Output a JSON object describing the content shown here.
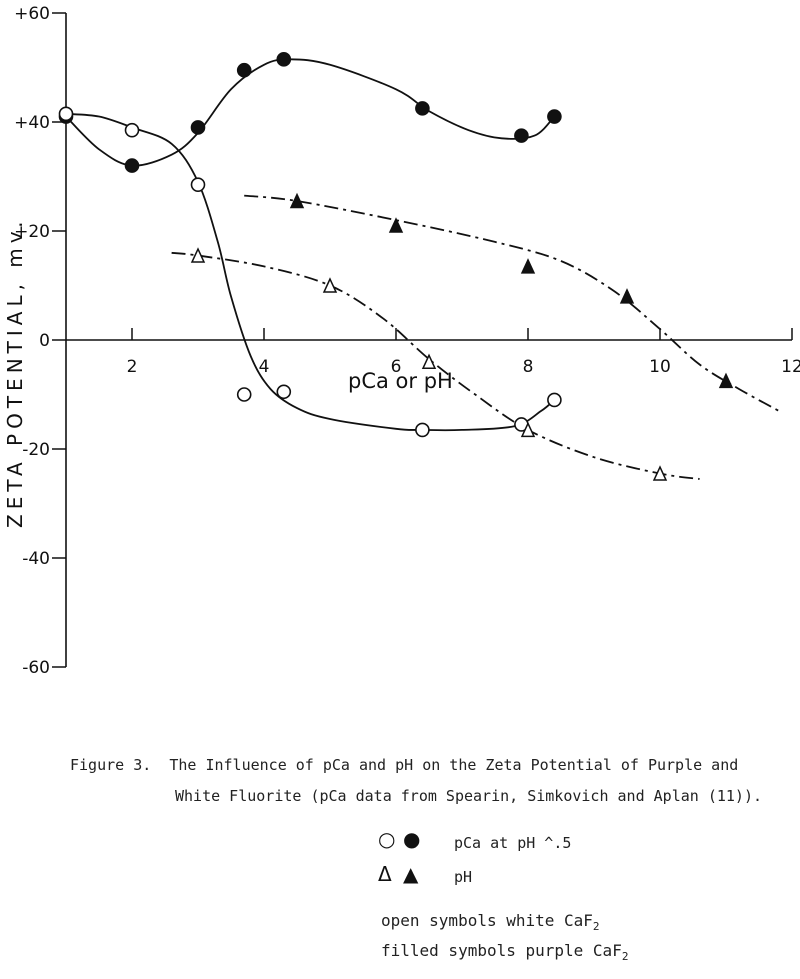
{
  "chart_data": {
    "type": "line",
    "xlabel": "pCa or pH",
    "ylabel": "ZETA POTENTIAL, mv.",
    "xlim": [
      1,
      12
    ],
    "ylim": [
      -60,
      60
    ],
    "x_ticks": [
      2,
      4,
      6,
      8,
      10,
      12
    ],
    "y_ticks": [
      {
        "value": 60,
        "label": "+60"
      },
      {
        "value": 40,
        "label": "+40"
      },
      {
        "value": 20,
        "label": "+20"
      },
      {
        "value": 0,
        "label": "0"
      },
      {
        "value": -20,
        "label": "-20"
      },
      {
        "value": -40,
        "label": "-40"
      },
      {
        "value": -60,
        "label": "-60"
      }
    ],
    "series": [
      {
        "marker": "filled-circle",
        "style": "solid",
        "points": [
          [
            1,
            41
          ],
          [
            2,
            32
          ],
          [
            3,
            39
          ],
          [
            3.7,
            49.5
          ],
          [
            4.3,
            51.5
          ],
          [
            6.4,
            42.5
          ],
          [
            7.9,
            37.5
          ],
          [
            8.4,
            41
          ]
        ],
        "curve": [
          [
            1,
            41
          ],
          [
            1.5,
            35
          ],
          [
            2,
            32
          ],
          [
            2.6,
            34
          ],
          [
            3,
            38
          ],
          [
            3.5,
            46
          ],
          [
            4,
            50.5
          ],
          [
            4.4,
            51.5
          ],
          [
            5,
            50.5
          ],
          [
            6,
            46
          ],
          [
            6.5,
            42
          ],
          [
            7.1,
            38.5
          ],
          [
            7.6,
            37
          ],
          [
            8.1,
            37.5
          ],
          [
            8.4,
            41
          ]
        ]
      },
      {
        "marker": "open-circle",
        "style": "solid",
        "points": [
          [
            1,
            41.5
          ],
          [
            2,
            38.5
          ],
          [
            3,
            28.5
          ],
          [
            3.7,
            -10
          ],
          [
            4.3,
            -9.5
          ],
          [
            6.4,
            -16.5
          ],
          [
            7.9,
            -15.5
          ],
          [
            8.4,
            -11
          ]
        ],
        "curve": [
          [
            1,
            41.5
          ],
          [
            1.5,
            41
          ],
          [
            2,
            39
          ],
          [
            2.6,
            36
          ],
          [
            3,
            29
          ],
          [
            3.3,
            18
          ],
          [
            3.5,
            8
          ],
          [
            3.8,
            -3
          ],
          [
            4.1,
            -9
          ],
          [
            4.5,
            -12.5
          ],
          [
            5,
            -14.5
          ],
          [
            6,
            -16.3
          ],
          [
            6.4,
            -16.5
          ],
          [
            7,
            -16.5
          ],
          [
            7.8,
            -15.8
          ],
          [
            8.2,
            -13
          ],
          [
            8.4,
            -11
          ]
        ]
      },
      {
        "marker": "filled-triangle",
        "style": "dash-dot",
        "points": [
          [
            4.5,
            25.5
          ],
          [
            6,
            21
          ],
          [
            8,
            13.5
          ],
          [
            9.5,
            8
          ],
          [
            11,
            -7.5
          ]
        ],
        "curve": [
          [
            3.7,
            26.5
          ],
          [
            4.5,
            25.5
          ],
          [
            6,
            22
          ],
          [
            7.5,
            18
          ],
          [
            8.5,
            14.5
          ],
          [
            9.3,
            9
          ],
          [
            10,
            2
          ],
          [
            10.6,
            -4.5
          ],
          [
            11.2,
            -9
          ],
          [
            11.8,
            -13
          ]
        ]
      },
      {
        "marker": "open-triangle",
        "style": "dash-dot",
        "points": [
          [
            3,
            15.5
          ],
          [
            5,
            10
          ],
          [
            6.5,
            -4
          ],
          [
            8,
            -16.5
          ],
          [
            10,
            -24.5
          ]
        ],
        "curve": [
          [
            2.6,
            16
          ],
          [
            3,
            15.5
          ],
          [
            4,
            13.5
          ],
          [
            5,
            10
          ],
          [
            5.8,
            4
          ],
          [
            6.5,
            -3.5
          ],
          [
            7.2,
            -10
          ],
          [
            8,
            -16.5
          ],
          [
            9,
            -21.5
          ],
          [
            10,
            -24.5
          ],
          [
            10.6,
            -25.5
          ]
        ]
      }
    ]
  },
  "caption": {
    "line1": "Figure 3.  The Influence of pCa and pH on the Zeta Potential of Purple and",
    "line2": "White Fluorite (pCa data from Spearin, Simkovich and Aplan (11))."
  },
  "legend": {
    "circles_text": "pCa at pH ^.5",
    "triangles_text": "pH",
    "circle_open_symbol": "○",
    "circle_filled_symbol": "●",
    "triangle_open_symbol": "Δ",
    "triangle_filled_symbol": "▲"
  },
  "notes": {
    "open_prefix": "open symbols white CaF",
    "filled_prefix": "filled symbols purple CaF",
    "subscript": "2"
  }
}
